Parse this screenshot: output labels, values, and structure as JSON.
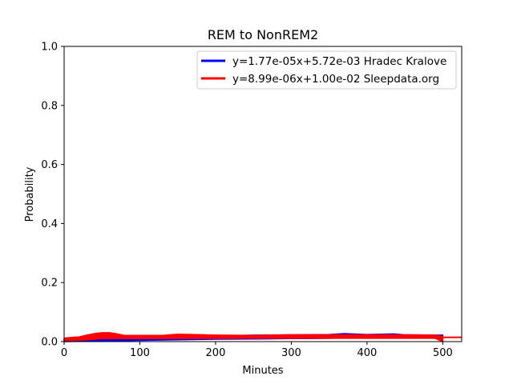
{
  "chart_data": {
    "type": "line",
    "title": "REM to NonREM2",
    "xlabel": "Minutes",
    "ylabel": "Probability",
    "xlim": [
      0,
      525
    ],
    "ylim": [
      0,
      1.0
    ],
    "x_ticks": [
      "0",
      "100",
      "200",
      "300",
      "400",
      "500"
    ],
    "x_tick_values": [
      0,
      100,
      200,
      300,
      400,
      500
    ],
    "y_ticks": [
      "0.0",
      "0.2",
      "0.4",
      "0.6",
      "0.8",
      "1.0"
    ],
    "y_tick_values": [
      0,
      0.2,
      0.4,
      0.6,
      0.8,
      1.0
    ],
    "legend_position": "top-right",
    "grid": false,
    "series": [
      {
        "name": "y=1.77e-05x+5.72e-03 Hradec Kralove",
        "color": "#0000ff",
        "style": "band",
        "x": [
          0,
          20,
          40,
          60,
          80,
          100,
          150,
          200,
          250,
          300,
          350,
          370,
          400,
          435,
          450,
          500
        ],
        "y_low": [
          0.0,
          0.001,
          0.002,
          0.002,
          0.003,
          0.004,
          0.006,
          0.008,
          0.009,
          0.01,
          0.011,
          0.012,
          0.012,
          0.013,
          0.013,
          0.014
        ],
        "y_high": [
          0.006,
          0.007,
          0.008,
          0.009,
          0.01,
          0.011,
          0.014,
          0.019,
          0.022,
          0.023,
          0.024,
          0.027,
          0.024,
          0.026,
          0.023,
          0.022
        ],
        "fit_x": [
          0,
          500
        ],
        "fit_y": [
          0.00572,
          0.01457
        ]
      },
      {
        "name": "y=8.99e-06x+1.00e-02 Sleepdata.org",
        "color": "#ff0000",
        "style": "band",
        "x": [
          0,
          10,
          20,
          30,
          40,
          50,
          60,
          70,
          80,
          100,
          130,
          150,
          170,
          200,
          250,
          300,
          350,
          400,
          450,
          490,
          500
        ],
        "y_low": [
          0.003,
          0.004,
          0.005,
          0.006,
          0.008,
          0.01,
          0.01,
          0.01,
          0.01,
          0.01,
          0.01,
          0.011,
          0.011,
          0.011,
          0.011,
          0.011,
          0.011,
          0.011,
          0.011,
          0.011,
          0.0
        ],
        "y_high": [
          0.012,
          0.014,
          0.016,
          0.022,
          0.027,
          0.03,
          0.03,
          0.026,
          0.021,
          0.021,
          0.021,
          0.025,
          0.024,
          0.022,
          0.021,
          0.023,
          0.023,
          0.023,
          0.023,
          0.022,
          0.018
        ],
        "fit_x": [
          0,
          525
        ],
        "fit_y": [
          0.01,
          0.0147
        ]
      }
    ]
  }
}
